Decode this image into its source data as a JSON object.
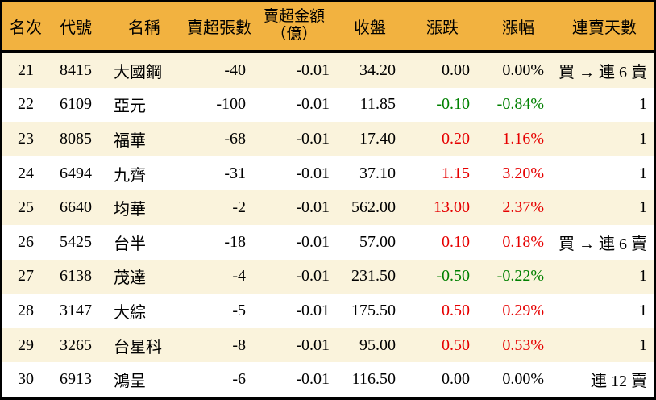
{
  "colors": {
    "header_bg": "#F2B240",
    "row_alt_bg": "#FAF3DC",
    "row_bg": "#FFFFFF",
    "up": "#E60000",
    "down": "#008000",
    "text": "#000000",
    "border": "#000000"
  },
  "chart_data": {
    "type": "table",
    "columns": [
      {
        "key": "rank",
        "label": "名次"
      },
      {
        "key": "code",
        "label": "代號"
      },
      {
        "key": "name",
        "label": "名稱"
      },
      {
        "key": "volume",
        "label": "賣超張數"
      },
      {
        "key": "amount",
        "label": "賣超金額",
        "label_line2": "（億）"
      },
      {
        "key": "close",
        "label": "收盤"
      },
      {
        "key": "change",
        "label": "漲跌"
      },
      {
        "key": "change_pct",
        "label": "漲幅"
      },
      {
        "key": "days",
        "label": "連賣天數"
      }
    ],
    "rows": [
      {
        "rank": "21",
        "code": "8415",
        "name": "大國鋼",
        "volume": "-40",
        "amount": "-0.01",
        "close": "34.20",
        "change": "0.00",
        "change_pct": "0.00%",
        "days": "買 → 連 6 賣",
        "trend": "flat"
      },
      {
        "rank": "22",
        "code": "6109",
        "name": "亞元",
        "volume": "-100",
        "amount": "-0.01",
        "close": "11.85",
        "change": "-0.10",
        "change_pct": "-0.84%",
        "days": "1",
        "trend": "down"
      },
      {
        "rank": "23",
        "code": "8085",
        "name": "福華",
        "volume": "-68",
        "amount": "-0.01",
        "close": "17.40",
        "change": "0.20",
        "change_pct": "1.16%",
        "days": "1",
        "trend": "up"
      },
      {
        "rank": "24",
        "code": "6494",
        "name": "九齊",
        "volume": "-31",
        "amount": "-0.01",
        "close": "37.10",
        "change": "1.15",
        "change_pct": "3.20%",
        "days": "1",
        "trend": "up"
      },
      {
        "rank": "25",
        "code": "6640",
        "name": "均華",
        "volume": "-2",
        "amount": "-0.01",
        "close": "562.00",
        "change": "13.00",
        "change_pct": "2.37%",
        "days": "1",
        "trend": "up"
      },
      {
        "rank": "26",
        "code": "5425",
        "name": "台半",
        "volume": "-18",
        "amount": "-0.01",
        "close": "57.00",
        "change": "0.10",
        "change_pct": "0.18%",
        "days": "買 → 連 6 賣",
        "trend": "up"
      },
      {
        "rank": "27",
        "code": "6138",
        "name": "茂達",
        "volume": "-4",
        "amount": "-0.01",
        "close": "231.50",
        "change": "-0.50",
        "change_pct": "-0.22%",
        "days": "1",
        "trend": "down"
      },
      {
        "rank": "28",
        "code": "3147",
        "name": "大綜",
        "volume": "-5",
        "amount": "-0.01",
        "close": "175.50",
        "change": "0.50",
        "change_pct": "0.29%",
        "days": "1",
        "trend": "up"
      },
      {
        "rank": "29",
        "code": "3265",
        "name": "台星科",
        "volume": "-8",
        "amount": "-0.01",
        "close": "95.00",
        "change": "0.50",
        "change_pct": "0.53%",
        "days": "1",
        "trend": "up"
      },
      {
        "rank": "30",
        "code": "6913",
        "name": "鴻呈",
        "volume": "-6",
        "amount": "-0.01",
        "close": "116.50",
        "change": "0.00",
        "change_pct": "0.00%",
        "days": "連 12 賣",
        "trend": "flat"
      }
    ]
  }
}
